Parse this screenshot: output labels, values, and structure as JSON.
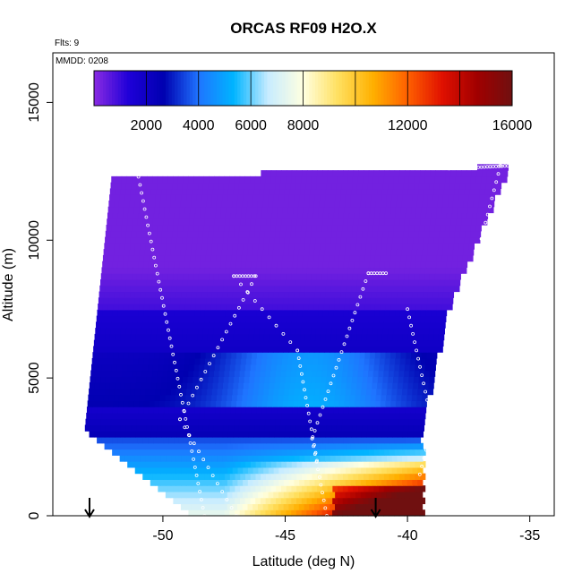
{
  "chart_data": {
    "type": "heatmap",
    "title": "ORCAS RF09 H2O.X",
    "flights_label": "Flts: 9",
    "date_label": "MMDD: 0208",
    "xlabel": "Latitude (deg N)",
    "ylabel": "Altitude (m)",
    "xlim": [
      -54.5,
      -34
    ],
    "ylim": [
      0,
      16800
    ],
    "x_ticks": [
      -50,
      -45,
      -40,
      -35
    ],
    "y_ticks": [
      0,
      5000,
      10000,
      15000
    ],
    "x_tick_labels": [
      "-50",
      "-45",
      "-40",
      "-35"
    ],
    "y_tick_labels": [
      "0",
      "5000",
      "10000",
      "15000"
    ],
    "colorbar": {
      "range": [
        0,
        16000
      ],
      "ticks": [
        2000,
        4000,
        6000,
        8000,
        12000,
        16000
      ],
      "tick_labels": [
        "2000",
        "4000",
        "6000",
        "8000",
        "12000",
        "16000"
      ],
      "colors": [
        "#8a2be2",
        "#1e00d8",
        "#0000b0",
        "#1f74ff",
        "#00b4ff",
        "#c8ecff",
        "#ffffe0",
        "#ffe060",
        "#ffb000",
        "#ff6000",
        "#e01000",
        "#a00000",
        "#701010"
      ]
    },
    "arrows_x": [
      -53,
      -41.3
    ],
    "domain": {
      "top": [
        [
          -52.0,
          12300
        ],
        [
          -38.2,
          12600
        ],
        [
          -35.9,
          12700
        ]
      ],
      "bottom": [
        [
          -53.2,
          3100
        ],
        [
          -48.8,
          0
        ],
        [
          -39.4,
          0
        ]
      ],
      "right": [
        [
          -35.9,
          12700
        ],
        [
          -38.3,
          7800
        ],
        [
          -39.5,
          3200
        ],
        [
          -39.4,
          0
        ]
      ]
    },
    "profiles": [
      {
        "from": [
          -51.0,
          12300
        ],
        "to": [
          -48.3,
          0
        ]
      },
      {
        "from": [
          -47.1,
          8700
        ],
        "to": [
          -44.5,
          6000
        ],
        "to2": [
          -43.7,
          2000
        ]
      },
      {
        "from": [
          -46.2,
          8700
        ],
        "to": [
          -49.3,
          3500
        ],
        "to2": [
          -47.0,
          0
        ]
      },
      {
        "from": [
          -41.6,
          8800
        ],
        "to": [
          -43.9,
          2800
        ],
        "to2": [
          -43.3,
          0
        ]
      },
      {
        "from": [
          -40.0,
          7500
        ],
        "to": [
          -38.9,
          3000
        ]
      },
      {
        "from": [
          -36.2,
          12700
        ],
        "to": [
          -39.5,
          1500
        ]
      }
    ]
  }
}
